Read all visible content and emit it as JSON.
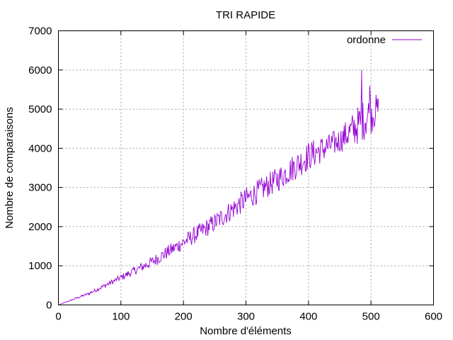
{
  "chart_data": {
    "type": "line",
    "title": "TRI RAPIDE",
    "xlabel": "Nombre d'éléments",
    "ylabel": "Nombre de comparaisons",
    "xlim": [
      0,
      600
    ],
    "ylim": [
      0,
      7000
    ],
    "xticks": [
      "0",
      "100",
      "200",
      "300",
      "400",
      "500",
      "600"
    ],
    "yticks": [
      "0",
      "1000",
      "2000",
      "3000",
      "4000",
      "5000",
      "6000",
      "7000"
    ],
    "grid": true,
    "legend_position": "top-right",
    "series": [
      {
        "name": "ordonne",
        "color": "#9400d3",
        "n_points": 512,
        "trend_x": [
          0,
          50,
          100,
          150,
          200,
          250,
          300,
          350,
          400,
          450,
          480,
          500,
          512
        ],
        "trend_y": [
          0,
          300,
          700,
          1100,
          1600,
          2100,
          2700,
          3200,
          3800,
          4200,
          4600,
          4900,
          5000
        ],
        "noise_x": [
          0,
          50,
          100,
          150,
          200,
          250,
          300,
          350,
          400,
          450,
          480,
          500,
          512
        ],
        "noise_y": [
          0,
          40,
          80,
          150,
          200,
          250,
          300,
          320,
          380,
          320,
          500,
          550,
          350
        ],
        "peaks": [
          [
            485,
            6000
          ],
          [
            433,
            4350
          ],
          [
            498,
            5600
          ]
        ]
      }
    ]
  }
}
